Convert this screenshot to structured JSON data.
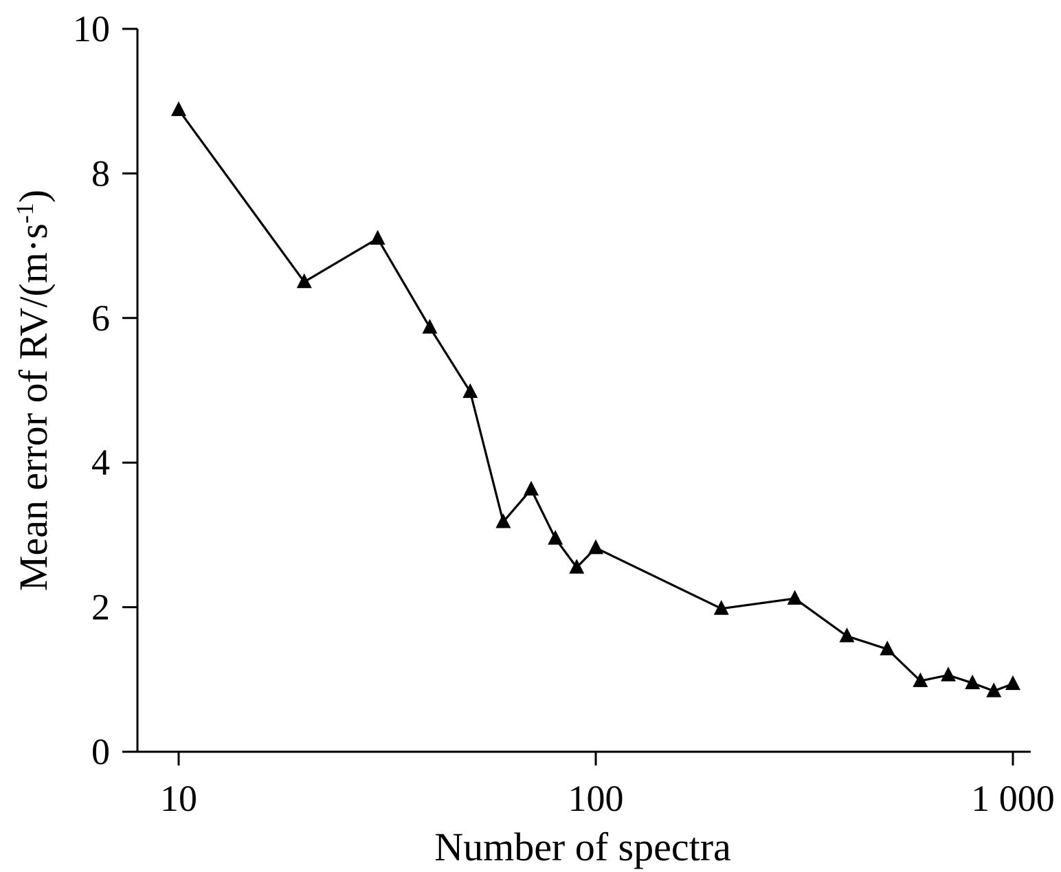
{
  "chart_data": {
    "type": "line",
    "xlabel": "Number of spectra",
    "ylabel": "Mean error of RV/(m·s",
    "ylabel_sup": "-1",
    "ylabel_end": ")",
    "xscale": "log",
    "xlim": [
      8,
      1080
    ],
    "ylim": [
      0,
      10
    ],
    "x_ticks": [
      10,
      100,
      1000
    ],
    "x_tick_labels": [
      "10",
      "100",
      "1 000"
    ],
    "y_ticks": [
      0,
      2,
      4,
      6,
      8,
      10
    ],
    "y_tick_labels": [
      "0",
      "2",
      "4",
      "6",
      "8",
      "10"
    ],
    "grid": false,
    "marker": "triangle",
    "color": "#000000",
    "series": [
      {
        "x": [
          10,
          20,
          30,
          40,
          50,
          60,
          70,
          80,
          90,
          100,
          200,
          300,
          400,
          500,
          600,
          700,
          800,
          900,
          1000
        ],
        "y": [
          8.88,
          6.5,
          7.1,
          5.87,
          4.98,
          3.18,
          3.63,
          2.95,
          2.55,
          2.82,
          1.98,
          2.12,
          1.6,
          1.42,
          0.98,
          1.06,
          0.95,
          0.84,
          0.94
        ]
      }
    ]
  }
}
